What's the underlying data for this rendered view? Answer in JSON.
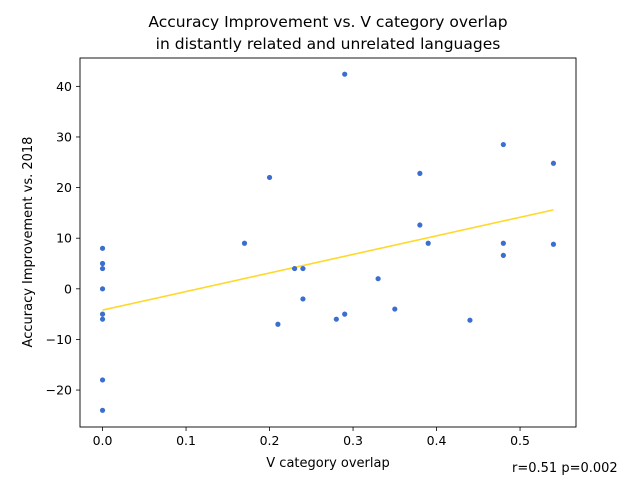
{
  "chart_data": {
    "type": "scatter",
    "title_lines": [
      "Accuracy Improvement vs. V category overlap",
      "in distantly related and unrelated languages"
    ],
    "xlabel": "V category overlap",
    "ylabel": "Accuracy Improvement vs. 2018",
    "xlim": [
      -0.027,
      0.567
    ],
    "ylim": [
      -27.3,
      45.6
    ],
    "xticks": [
      0.0,
      0.1,
      0.2,
      0.3,
      0.4,
      0.5
    ],
    "xtick_labels": [
      "0.0",
      "0.1",
      "0.2",
      "0.3",
      "0.4",
      "0.5"
    ],
    "yticks": [
      -20,
      -10,
      0,
      10,
      20,
      30,
      40
    ],
    "ytick_labels": [
      "−20",
      "−10",
      "0",
      "10",
      "20",
      "30",
      "40"
    ],
    "grid": false,
    "points": [
      {
        "x": 0.0,
        "y": 8.0
      },
      {
        "x": 0.0,
        "y": 5.0
      },
      {
        "x": 0.0,
        "y": 4.0
      },
      {
        "x": 0.0,
        "y": 0.0
      },
      {
        "x": 0.0,
        "y": -5.0
      },
      {
        "x": 0.0,
        "y": -6.0
      },
      {
        "x": 0.0,
        "y": -18.0
      },
      {
        "x": 0.0,
        "y": -24.0
      },
      {
        "x": 0.17,
        "y": 9.0
      },
      {
        "x": 0.2,
        "y": 22.0
      },
      {
        "x": 0.21,
        "y": -7.0
      },
      {
        "x": 0.23,
        "y": 4.0
      },
      {
        "x": 0.24,
        "y": 4.0
      },
      {
        "x": 0.24,
        "y": -2.0
      },
      {
        "x": 0.28,
        "y": -6.0
      },
      {
        "x": 0.29,
        "y": -5.0
      },
      {
        "x": 0.29,
        "y": 42.4
      },
      {
        "x": 0.33,
        "y": 2.0
      },
      {
        "x": 0.35,
        "y": -4.0
      },
      {
        "x": 0.38,
        "y": 22.8
      },
      {
        "x": 0.38,
        "y": 12.6
      },
      {
        "x": 0.39,
        "y": 9.0
      },
      {
        "x": 0.44,
        "y": -6.2
      },
      {
        "x": 0.48,
        "y": 28.5
      },
      {
        "x": 0.48,
        "y": 9.0
      },
      {
        "x": 0.48,
        "y": 6.6
      },
      {
        "x": 0.54,
        "y": 24.8
      },
      {
        "x": 0.54,
        "y": 8.8
      }
    ],
    "trendline": {
      "x": [
        0.0,
        0.54
      ],
      "y": [
        -4.2,
        15.6
      ]
    },
    "point_color": "#3a6fcf",
    "trendline_color": "#ffd829",
    "annotation": "r=0.51 p=0.002"
  }
}
